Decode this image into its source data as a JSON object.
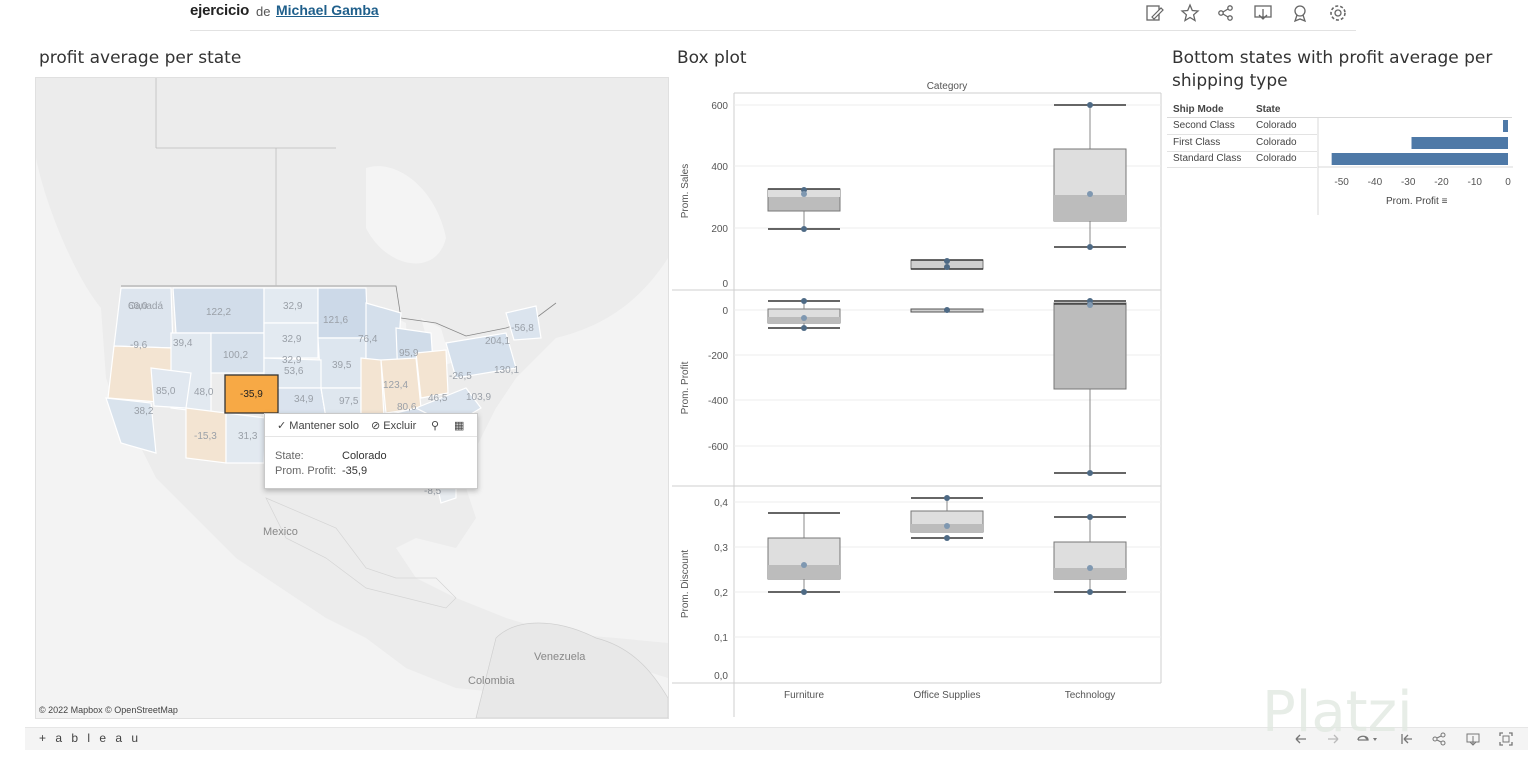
{
  "header": {
    "workbook_title": "ejercicio",
    "by_label": "de",
    "author": "Michael Gamba",
    "icons": [
      "edit-icon",
      "star-icon",
      "share-icon",
      "download-icon",
      "metrics-icon",
      "settings-icon"
    ]
  },
  "map_sheet": {
    "title": "profit average per state",
    "place_labels": {
      "canada": "Canadá",
      "mexico": "Mexico",
      "venezuela": "Venezuela",
      "colombia": "Colombia"
    },
    "state_values": [
      "66,0",
      "122,2",
      "32,9",
      "121,6",
      "-56,8",
      "-9,6",
      "39,4",
      "32,9",
      "76,4",
      "204,1",
      "100,2",
      "32,9",
      "39,5",
      "95,9",
      "85,0",
      "48,0",
      "-35,9",
      "53,6",
      "123,4",
      "-26,5",
      "130,1",
      "38,2",
      "34,9",
      "97,5",
      "80,6",
      "46,5",
      "103,9",
      "-15,3",
      "31,3",
      "-8,5"
    ],
    "selected_value": "-35,9",
    "attribution": "© 2022 Mapbox  © OpenStreetMap",
    "colors": {
      "positive": "#d7e1ec",
      "negative": "#f3e3d0",
      "selected": "#f7a945"
    }
  },
  "tooltip": {
    "keep_only": "Mantener solo",
    "exclude": "Excluir",
    "state_label": "State:",
    "state_value": "Colorado",
    "profit_label": "Prom. Profit:",
    "profit_value": "-35,9"
  },
  "boxplot_sheet": {
    "title": "Box plot",
    "header": "Category",
    "rows": [
      {
        "label": "Prom. Sales",
        "ticks": [
          "600",
          "400",
          "200",
          "0"
        ]
      },
      {
        "label": "Prom. Profit",
        "ticks": [
          "0",
          "-200",
          "-400",
          "-600"
        ]
      },
      {
        "label": "Prom. Discount",
        "ticks": [
          "0,4",
          "0,3",
          "0,2",
          "0,1",
          "0,0"
        ]
      }
    ],
    "categories": [
      "Furniture",
      "Office Supplies",
      "Technology"
    ]
  },
  "bar_sheet": {
    "title": "Bottom states with profit average per shipping type",
    "col_ship_mode": "Ship Mode",
    "col_state": "State",
    "rows": [
      {
        "ship_mode": "Second Class",
        "state": "Colorado",
        "value": -1.5
      },
      {
        "ship_mode": "First Class",
        "state": "Colorado",
        "value": -29
      },
      {
        "ship_mode": "Standard Class",
        "state": "Colorado",
        "value": -53
      }
    ],
    "ticks": [
      "-50",
      "-40",
      "-30",
      "-20",
      "-10",
      "0"
    ],
    "axis_label": "Prom. Profit",
    "bar_color": "#4e79a7"
  },
  "chart_data": {
    "type": "bar",
    "categories": [
      "Second Class",
      "First Class",
      "Standard Class"
    ],
    "series": [
      {
        "name": "Prom. Profit",
        "values": [
          -1.5,
          -29,
          -53
        ]
      }
    ],
    "xlabel": "Prom. Profit",
    "ylabel": "",
    "xlim": [
      -55,
      0
    ]
  },
  "footer": {
    "logo": "+ a b l e a u",
    "icons": [
      "undo-icon",
      "redo-icon",
      "revert-icon",
      "back-icon",
      "share-icon",
      "download-icon",
      "fullscreen-icon"
    ]
  },
  "watermark": "Platzi"
}
